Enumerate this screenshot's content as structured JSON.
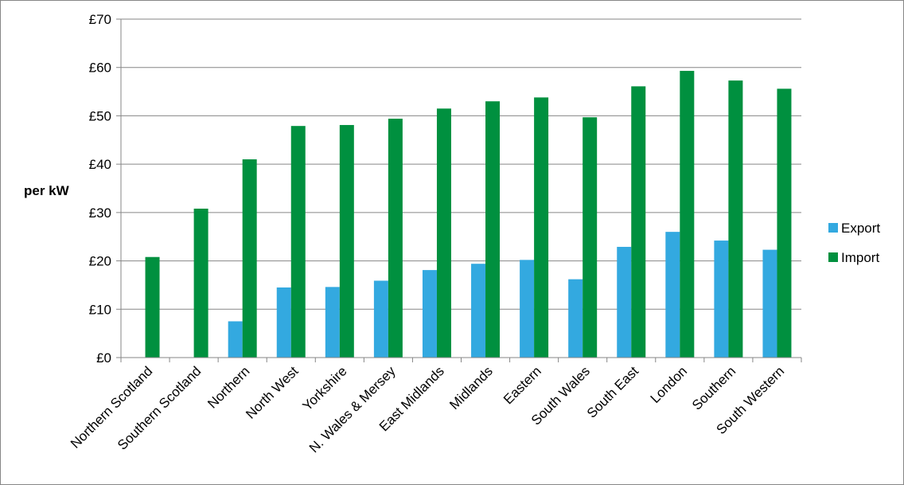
{
  "chart_data": {
    "type": "bar",
    "title": "",
    "xlabel": "",
    "ylabel": "per kW",
    "ylim": [
      0,
      70
    ],
    "yticks": [
      0,
      10,
      20,
      30,
      40,
      50,
      60,
      70
    ],
    "ytick_labels": [
      "£0",
      "£10",
      "£20",
      "£30",
      "£40",
      "£50",
      "£60",
      "£70"
    ],
    "grid": true,
    "legend_position": "right",
    "categories": [
      "Northern Scotland",
      "Southern Scotland",
      "Northern",
      "North West",
      "Yorkshire",
      "N. Wales & Mersey",
      "East Midlands",
      "Midlands",
      "Eastern",
      "South Wales",
      "South East",
      "London",
      "Southern",
      "South Western"
    ],
    "series": [
      {
        "name": "Export",
        "color": "#33a9e0",
        "values": [
          0,
          0,
          7.5,
          14.5,
          14.6,
          15.9,
          18.1,
          19.4,
          20.2,
          16.2,
          22.9,
          26.0,
          24.2,
          22.3
        ]
      },
      {
        "name": "Import",
        "color": "#00903f",
        "values": [
          20.8,
          30.8,
          41.0,
          47.9,
          48.1,
          49.4,
          51.5,
          53.0,
          53.8,
          49.7,
          56.1,
          59.3,
          57.3,
          55.6
        ]
      }
    ]
  }
}
